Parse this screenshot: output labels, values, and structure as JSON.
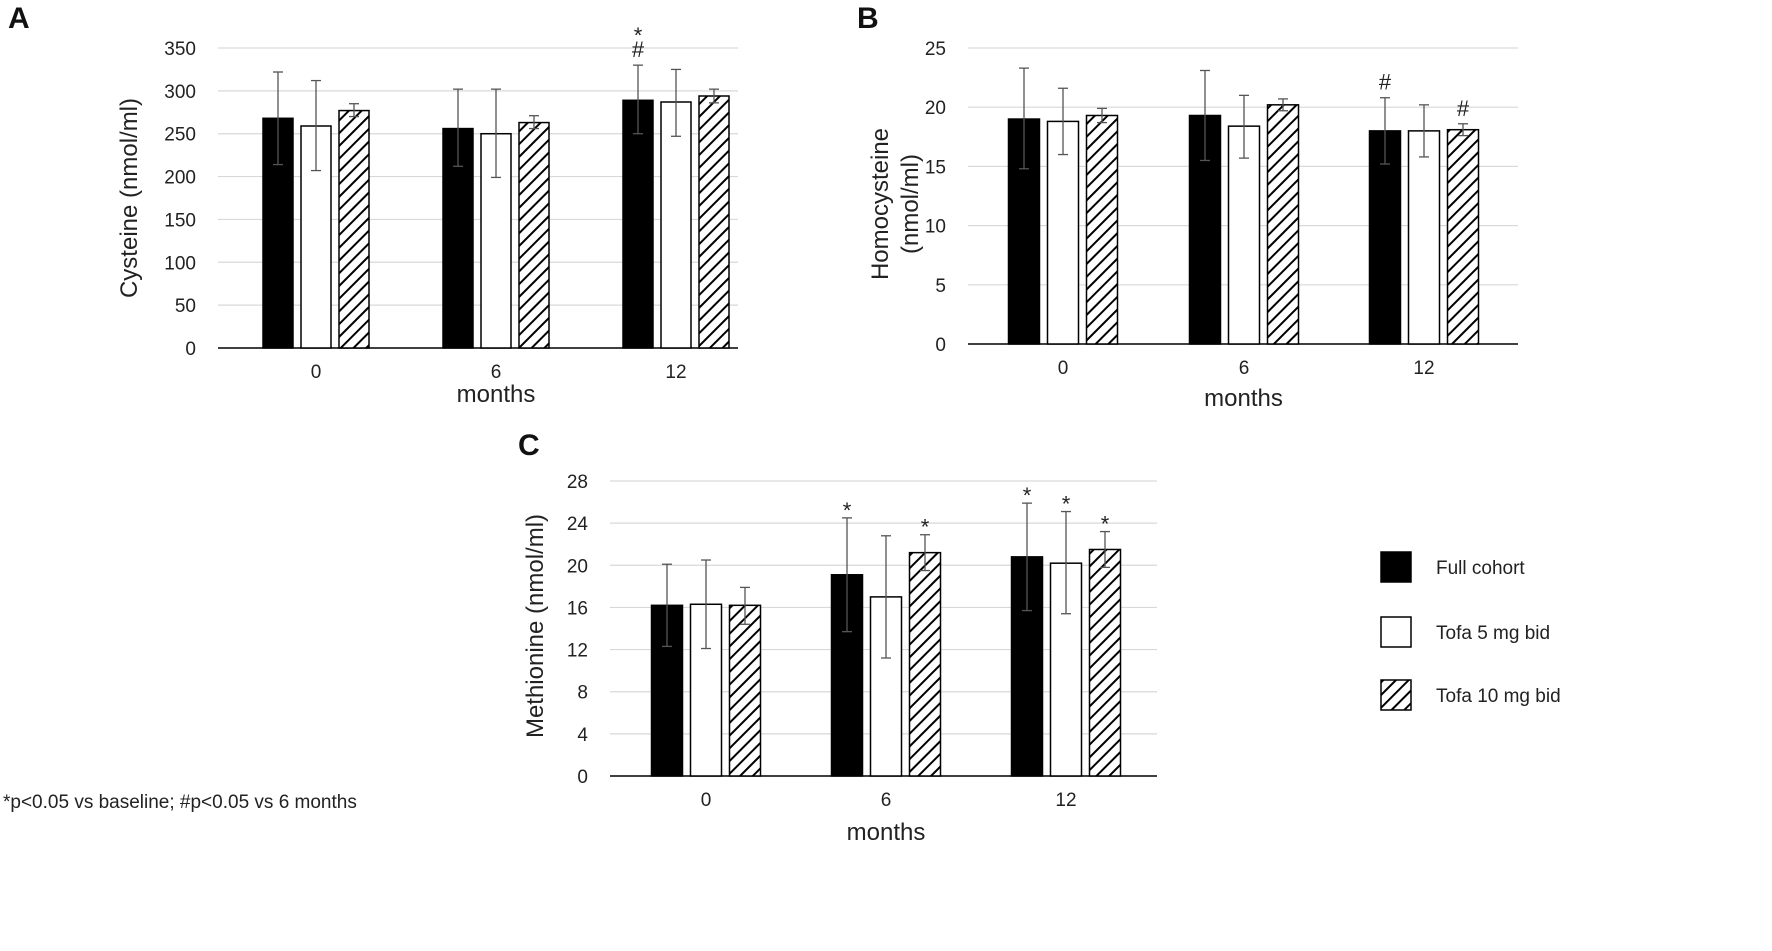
{
  "footnote": "*p<0.05 vs baseline; #p<0.05 vs 6 months",
  "legend": [
    {
      "label": "Full cohort",
      "fill": "solid"
    },
    {
      "label": "Tofa 5 mg bid",
      "fill": "white"
    },
    {
      "label": "Tofa 10 mg bid",
      "fill": "hatched"
    }
  ],
  "colors": {
    "solid": "#000000",
    "outline": "#000000",
    "grid": "#d9d9d9",
    "axis": "#000000",
    "error": "#555555"
  },
  "chart_data": [
    {
      "panel": "A",
      "type": "bar",
      "ylabel": "Cysteine (nmol/ml)",
      "ylabel_lines": [
        "Cysteine (nmol/ml)"
      ],
      "xlabel": "months",
      "categories": [
        "0",
        "6",
        "12"
      ],
      "ylim": [
        0,
        350
      ],
      "yticks": [
        0,
        50,
        100,
        150,
        200,
        250,
        300,
        350
      ],
      "series": [
        {
          "name": "Full cohort",
          "values": [
            268,
            256,
            289
          ],
          "err_hi": [
            322,
            302,
            330
          ],
          "err_lo": [
            214,
            212,
            250
          ]
        },
        {
          "name": "Tofa 5 mg bid",
          "values": [
            259,
            250,
            287
          ],
          "err_hi": [
            312,
            302,
            325
          ],
          "err_lo": [
            207,
            199,
            247
          ]
        },
        {
          "name": "Tofa 10 mg bid",
          "values": [
            277,
            263,
            294
          ],
          "err_hi": [
            285,
            271,
            302
          ],
          "err_lo": [
            270,
            256,
            286
          ]
        }
      ],
      "annotations": [
        {
          "category": 2,
          "series": 0,
          "marks": [
            "#",
            "*"
          ]
        }
      ]
    },
    {
      "panel": "B",
      "type": "bar",
      "ylabel": "Homocysteine (nmol/ml)",
      "ylabel_lines": [
        "Homocysteine",
        "(nmol/ml)"
      ],
      "xlabel": "months",
      "categories": [
        "0",
        "6",
        "12"
      ],
      "ylim": [
        0,
        25
      ],
      "yticks": [
        0,
        5,
        10,
        15,
        20,
        25
      ],
      "series": [
        {
          "name": "Full cohort",
          "values": [
            19.0,
            19.3,
            18.0
          ],
          "err_hi": [
            23.3,
            23.1,
            20.8
          ],
          "err_lo": [
            14.8,
            15.5,
            15.2
          ]
        },
        {
          "name": "Tofa 5 mg bid",
          "values": [
            18.8,
            18.4,
            18.0
          ],
          "err_hi": [
            21.6,
            21.0,
            20.2
          ],
          "err_lo": [
            16.0,
            15.7,
            15.8
          ]
        },
        {
          "name": "Tofa 10 mg bid",
          "values": [
            19.3,
            20.2,
            18.1
          ],
          "err_hi": [
            19.9,
            20.7,
            18.6
          ],
          "err_lo": [
            18.7,
            19.7,
            17.6
          ]
        }
      ],
      "annotations": [
        {
          "category": 2,
          "series": 0,
          "marks": [
            "#"
          ]
        },
        {
          "category": 2,
          "series": 2,
          "marks": [
            "#"
          ]
        }
      ]
    },
    {
      "panel": "C",
      "type": "bar",
      "ylabel": "Methionine (nmol/ml)",
      "ylabel_lines": [
        "Methionine (nmol/ml)"
      ],
      "xlabel": "months",
      "categories": [
        "0",
        "6",
        "12"
      ],
      "ylim": [
        0,
        28
      ],
      "yticks": [
        0,
        4,
        8,
        12,
        16,
        20,
        24,
        28
      ],
      "series": [
        {
          "name": "Full cohort",
          "values": [
            16.2,
            19.1,
            20.8
          ],
          "err_hi": [
            20.1,
            24.5,
            25.9
          ],
          "err_lo": [
            12.3,
            13.7,
            15.7
          ]
        },
        {
          "name": "Tofa 5 mg bid",
          "values": [
            16.3,
            17.0,
            20.2
          ],
          "err_hi": [
            20.5,
            22.8,
            25.1
          ],
          "err_lo": [
            12.1,
            11.2,
            15.4
          ]
        },
        {
          "name": "Tofa 10 mg bid",
          "values": [
            16.2,
            21.2,
            21.5
          ],
          "err_hi": [
            17.9,
            22.9,
            23.2
          ],
          "err_lo": [
            14.4,
            19.5,
            19.8
          ]
        }
      ],
      "annotations": [
        {
          "category": 1,
          "series": 0,
          "marks": [
            "*"
          ]
        },
        {
          "category": 1,
          "series": 2,
          "marks": [
            "*"
          ]
        },
        {
          "category": 2,
          "series": 0,
          "marks": [
            "*"
          ]
        },
        {
          "category": 2,
          "series": 1,
          "marks": [
            "*"
          ]
        },
        {
          "category": 2,
          "series": 2,
          "marks": [
            "*"
          ]
        }
      ]
    }
  ]
}
